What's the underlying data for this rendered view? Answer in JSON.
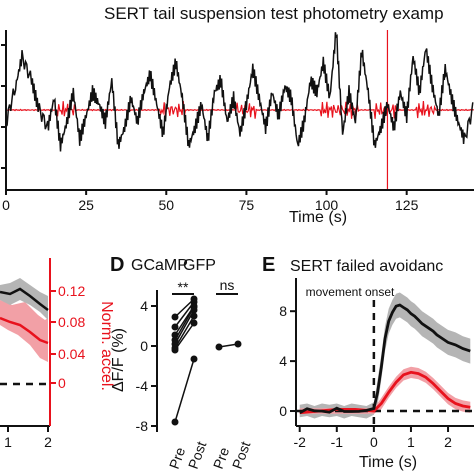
{
  "figure": {
    "title": "SERT tail suspension test photometry examp",
    "colors": {
      "photometry": "#111111",
      "acceleration": "#e8121d",
      "error_gray": "#b5b5b5",
      "error_red": "#f2a0a6"
    }
  },
  "chart_data": [
    {
      "id": "top-trace",
      "type": "line",
      "title": "SERT tail suspension test photometry examp",
      "xlabel": "Time (s)",
      "x_ticks": [
        "0",
        "25",
        "50",
        "75",
        "100",
        "125"
      ],
      "xlim": [
        0,
        146
      ],
      "ylim": [
        -1.35,
        1.35
      ],
      "series": [
        {
          "color": "#111111",
          "values_note": "photometry",
          "x": [
            0,
            3,
            5,
            8,
            10,
            13,
            15,
            17,
            19,
            21,
            23,
            25,
            27,
            29,
            31,
            33,
            35,
            37,
            39,
            41,
            43,
            45,
            47,
            49,
            51,
            53,
            55,
            57,
            59,
            61,
            63,
            65,
            67,
            69,
            71,
            73,
            75,
            77,
            79,
            81,
            83,
            85,
            87,
            89,
            91,
            93,
            95,
            97,
            99,
            101,
            103,
            105,
            107,
            109,
            111,
            113,
            115,
            117,
            119,
            121,
            123,
            125,
            127,
            129,
            131,
            133,
            135,
            137,
            139,
            141,
            143,
            146
          ],
          "y": [
            -0.2,
            0.4,
            0.9,
            0.5,
            0.05,
            -0.3,
            0.2,
            -0.6,
            -0.2,
            0.3,
            -0.5,
            -0.1,
            0.3,
            0.1,
            -0.2,
            0.5,
            -0.6,
            -0.3,
            0.2,
            -0.2,
            0.3,
            0.6,
            0.1,
            -0.4,
            0.4,
            0.8,
            0.2,
            -0.6,
            -0.3,
            0.1,
            -0.5,
            0.3,
            0.5,
            -0.2,
            0.2,
            -0.4,
            0.1,
            0.7,
            0.2,
            -0.3,
            0.3,
            -0.1,
            0.4,
            0.2,
            -0.6,
            -0.2,
            0.5,
            0.3,
            0.8,
            0.2,
            1.35,
            -0.4,
            0.3,
            -0.2,
            1.0,
            0.3,
            -0.6,
            -0.3,
            0.1,
            -0.3,
            0.3,
            -0.1,
            0.9,
            0.3,
            1.05,
            0.4,
            -0.1,
            0.7,
            0.2,
            -0.2,
            -0.5,
            0.1
          ]
        },
        {
          "color": "#e8121d",
          "values_note": "acceleration",
          "x": [
            0,
            146
          ],
          "y": [
            0,
            0
          ]
        }
      ]
    },
    {
      "id": "panel-c",
      "type": "line",
      "x_ticks": [
        "1",
        "2"
      ],
      "y_right_label": "Norm. accel.",
      "y_right_ticks": [
        "0",
        "0.04",
        "0.08",
        "0.12"
      ]
    },
    {
      "id": "panel-d",
      "type": "line",
      "panel_label": "D",
      "group_labels": [
        "GCaMP",
        "GFP"
      ],
      "significance": [
        "**",
        "ns"
      ],
      "ylabel": "ΔF/F (%)",
      "y_ticks": [
        "4",
        "0",
        "-4",
        "-8"
      ],
      "ylim": [
        -8.6,
        5.6
      ],
      "categories": [
        "Pre",
        "Post",
        "Pre",
        "Post"
      ],
      "gcamp_pairs": [
        [
          2.9,
          4.7
        ],
        [
          1.9,
          4.4
        ],
        [
          1.1,
          4.0
        ],
        [
          0.6,
          3.9
        ],
        [
          0.2,
          3.6
        ],
        [
          -0.2,
          3.0
        ],
        [
          -0.4,
          2.3
        ],
        [
          -7.6,
          -1.3
        ]
      ],
      "gfp_pair": [
        -0.1,
        0.2
      ]
    },
    {
      "id": "panel-e",
      "type": "line",
      "panel_label": "E",
      "title": "SERT failed avoidanc",
      "annotation": "movement onset",
      "xlabel": "Time (s)",
      "x_ticks": [
        "-2",
        "-1",
        "0",
        "1",
        "2"
      ],
      "y_ticks": [
        "0",
        "4",
        "8"
      ],
      "xlim": [
        -2.1,
        2.7
      ],
      "ylim": [
        -1.2,
        10.5
      ],
      "series": [
        {
          "color": "#111111",
          "band": "#b5b5b5",
          "x": [
            -2,
            -1.8,
            -1.6,
            -1.4,
            -1.2,
            -1,
            -0.8,
            -0.6,
            -0.4,
            -0.2,
            0,
            0.1,
            0.2,
            0.3,
            0.4,
            0.5,
            0.6,
            0.7,
            0.8,
            0.9,
            1.0,
            1.1,
            1.2,
            1.3,
            1.4,
            1.5,
            1.6,
            1.7,
            1.8,
            1.9,
            2.0,
            2.2,
            2.4,
            2.6
          ],
          "y": [
            0,
            0.1,
            -0.1,
            0.1,
            0,
            0.1,
            -0.1,
            0.1,
            0,
            -0.1,
            0.2,
            1.5,
            3.5,
            5.8,
            7.2,
            7.9,
            8.4,
            8.5,
            8.3,
            8.1,
            7.8,
            7.6,
            7.3,
            7.0,
            6.8,
            6.6,
            6.4,
            6.1,
            5.9,
            5.7,
            5.5,
            5.3,
            5.0,
            4.8
          ],
          "err": 1.0
        },
        {
          "color": "#e8121d",
          "band": "#f2a0a6",
          "x": [
            -2,
            -1.5,
            -1,
            -0.5,
            0,
            0.2,
            0.4,
            0.6,
            0.8,
            1.0,
            1.2,
            1.4,
            1.6,
            1.8,
            2.0,
            2.2,
            2.4,
            2.6
          ],
          "y": [
            0,
            0,
            0,
            0,
            0,
            0.6,
            1.5,
            2.3,
            2.9,
            3.1,
            3.0,
            2.7,
            2.2,
            1.6,
            1.0,
            0.6,
            0.4,
            0.3
          ],
          "err": 0.45
        }
      ]
    }
  ]
}
